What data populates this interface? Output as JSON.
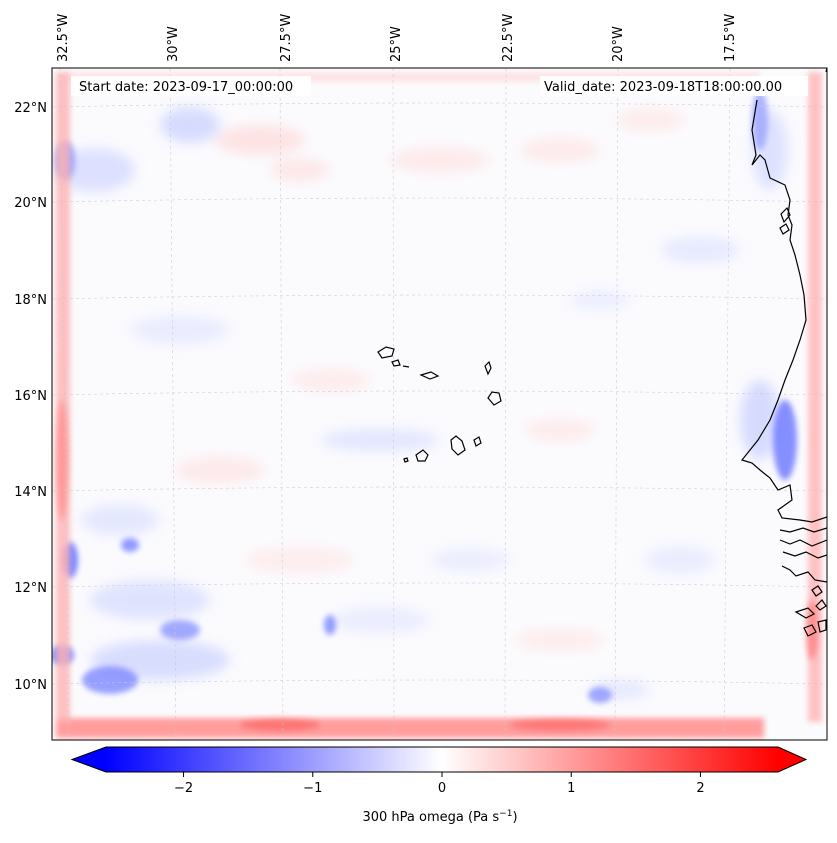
{
  "map": {
    "start_date_label": "Start date: 2023-09-17_00:00:00",
    "valid_date_label": "Valid_date: 2023-09-18T18:00:00.00",
    "lon_labels": [
      "32.5°W",
      "30°W",
      "27.5°W",
      "25°W",
      "22.5°W",
      "20°W",
      "17.5°W"
    ],
    "lat_labels": [
      "22°N",
      "20°N",
      "18°N",
      "16°N",
      "14°N",
      "12°N",
      "10°N"
    ]
  },
  "colorbar": {
    "label_text": "300 hPa omega (Pa s",
    "label_sup": "−1",
    "label_close": ")",
    "ticks": [
      "−2",
      "−1",
      "0",
      "1",
      "2"
    ],
    "vmin": -2.6,
    "vmax": 2.6,
    "colors": {
      "negative": "#0000ff",
      "zero": "#ffffff",
      "positive": "#ff0000"
    }
  }
}
